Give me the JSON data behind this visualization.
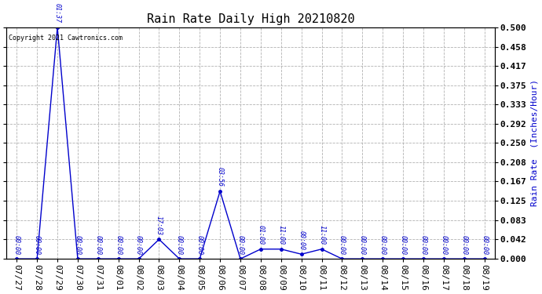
{
  "title": "Rain Rate Daily High 20210820",
  "ylabel": "Rain Rate  (Inches/Hour)",
  "copyright_text": "Copyright 2021 Cawtronics.com",
  "line_color": "#0000cc",
  "label_color": "#0000cc",
  "grid_color": "#aaaaaa",
  "background_color": "#ffffff",
  "x_labels": [
    "07/27",
    "07/28",
    "07/29",
    "07/30",
    "07/31",
    "08/01",
    "08/02",
    "08/03",
    "08/04",
    "08/05",
    "08/06",
    "08/07",
    "08/08",
    "08/09",
    "08/10",
    "08/11",
    "08/12",
    "08/13",
    "08/14",
    "08/15",
    "08/16",
    "08/17",
    "08/18",
    "08/19"
  ],
  "x_values": [
    0,
    1,
    2,
    3,
    4,
    5,
    6,
    7,
    8,
    9,
    10,
    11,
    12,
    13,
    14,
    15,
    16,
    17,
    18,
    19,
    20,
    21,
    22,
    23
  ],
  "y_values": [
    0.0,
    0.0,
    0.5,
    0.0,
    0.0,
    0.0,
    0.0,
    0.042,
    0.0,
    0.0,
    0.146,
    0.0,
    0.021,
    0.021,
    0.01,
    0.021,
    0.0,
    0.0,
    0.0,
    0.0,
    0.0,
    0.0,
    0.0,
    0.0
  ],
  "point_labels": [
    "00:00",
    "00:00",
    "01:37",
    "00:00",
    "00:00",
    "00:00",
    "00:00",
    "17:03",
    "00:00",
    "00:00",
    "03:56",
    "00:00",
    "01:00",
    "11:00",
    "00:00",
    "11:00",
    "00:00",
    "00:00",
    "00:00",
    "00:00",
    "00:00",
    "00:00",
    "00:00",
    "00:00"
  ],
  "yticks": [
    0.0,
    0.042,
    0.083,
    0.125,
    0.167,
    0.208,
    0.25,
    0.292,
    0.333,
    0.375,
    0.417,
    0.458,
    0.5
  ],
  "ylim": [
    0.0,
    0.5
  ],
  "title_fontsize": 11,
  "ylabel_fontsize": 8,
  "tick_fontsize": 8,
  "label_fontsize": 6,
  "figwidth": 6.9,
  "figheight": 3.75,
  "dpi": 100
}
